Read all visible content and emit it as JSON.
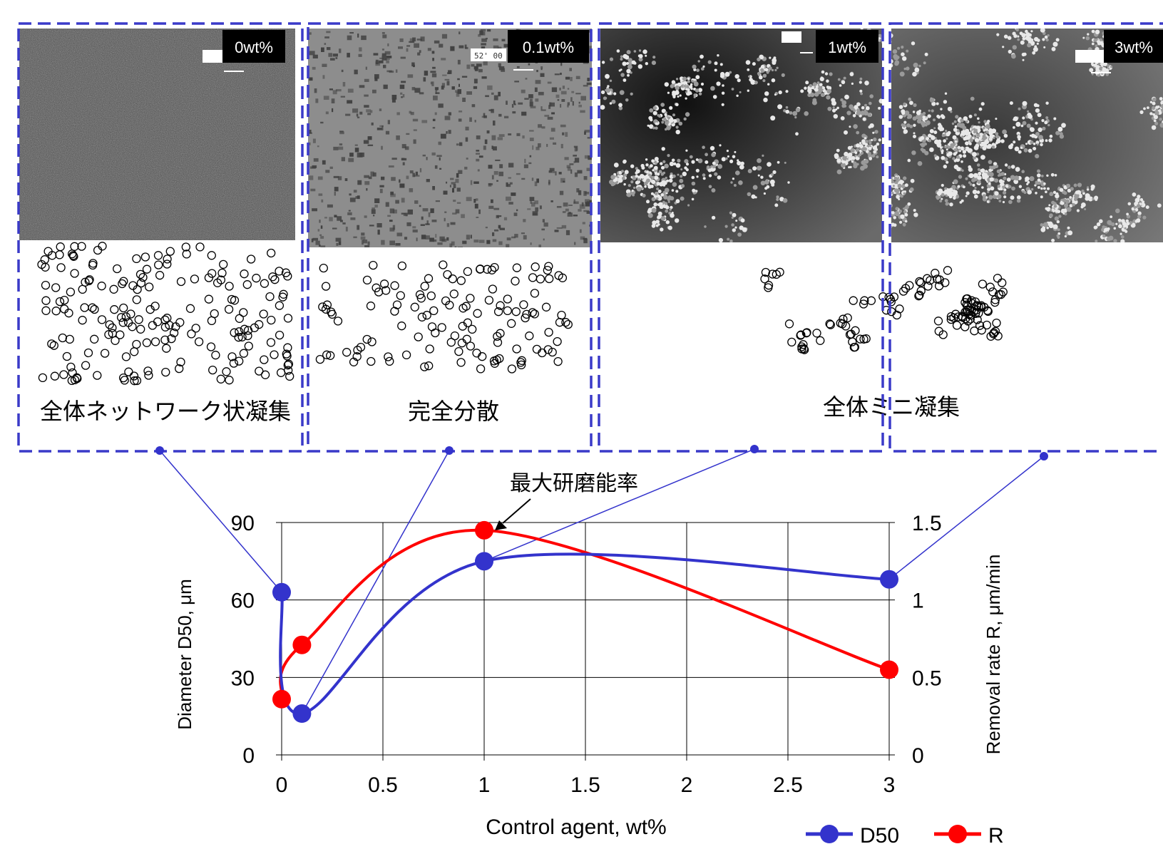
{
  "panels": [
    {
      "tag": "0wt%",
      "style": "network"
    },
    {
      "tag": "0.1wt%",
      "style": "dispersed"
    },
    {
      "tag": "1wt%",
      "style": "clusters"
    },
    {
      "tag": "3wt%",
      "style": "clusters"
    }
  ],
  "scale_bar_text": "52' 00",
  "captions": {
    "network": "全体ネットワーク状凝集",
    "dispersed": "完全分散",
    "mini": "全体ミニ凝集"
  },
  "annotation": "最大研磨能率",
  "colors": {
    "frame": "#3a3ac8",
    "d50": "#3333cc",
    "r": "#ff0000",
    "grid": "#000000"
  },
  "chart_data": {
    "type": "line",
    "xlabel": "Control agent, wt%",
    "ylabel_left": "Diameter D50, μm",
    "ylabel_right": "Removal rate R, μm/min",
    "xlim": [
      0,
      3
    ],
    "ylim_left": [
      0,
      90
    ],
    "ylim_right": [
      0,
      1.5
    ],
    "x_ticks": [
      "0",
      "0.5",
      "1",
      "1.5",
      "2",
      "2.5",
      "3"
    ],
    "y_ticks_left": [
      "0",
      "30",
      "60",
      "90"
    ],
    "y_ticks_right": [
      "0",
      "0.5",
      "1",
      "1.5"
    ],
    "grid": true,
    "legend_position": "bottom-right",
    "series": [
      {
        "name": "D50",
        "axis": "left",
        "color": "#3333cc",
        "points": [
          [
            0,
            63
          ],
          [
            0.1,
            16
          ],
          [
            1,
            75
          ],
          [
            3,
            68
          ]
        ]
      },
      {
        "name": "R",
        "axis": "right",
        "color": "#ff0000",
        "points": [
          [
            0,
            0.36
          ],
          [
            0.1,
            0.71
          ],
          [
            1,
            1.45
          ],
          [
            3,
            0.55
          ]
        ]
      }
    ]
  }
}
